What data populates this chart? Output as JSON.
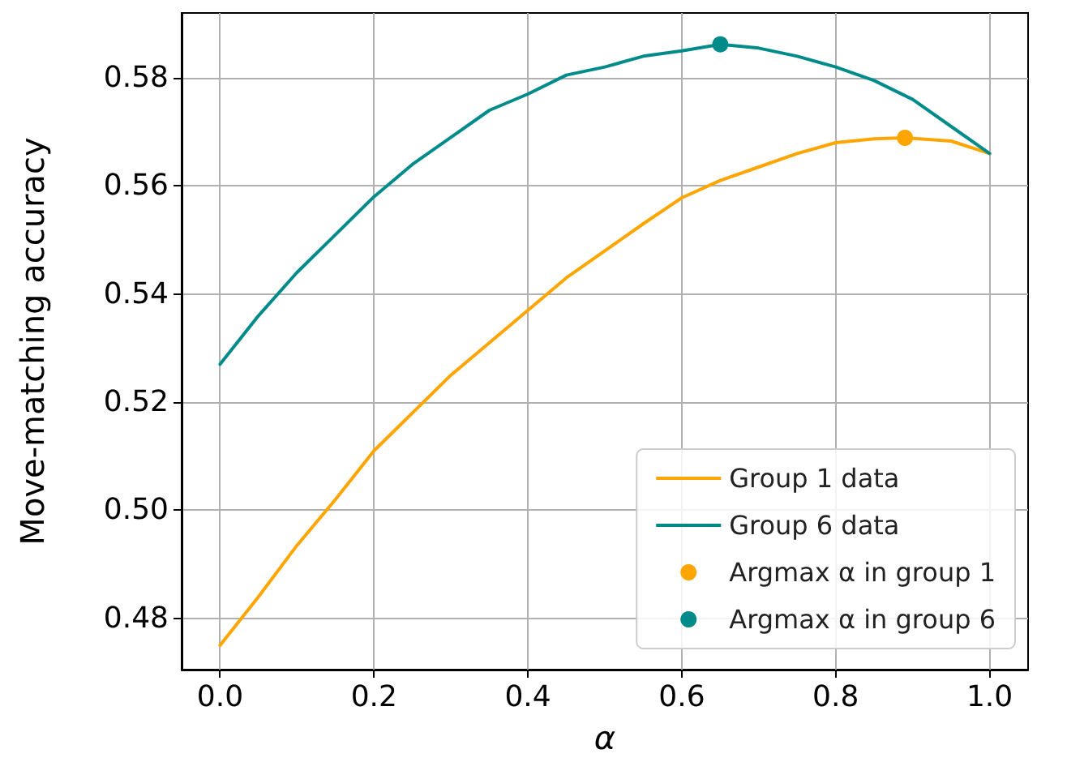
{
  "chart_data": {
    "type": "line",
    "xlabel": "α",
    "ylabel": "Move-matching accuracy",
    "xlim": [
      -0.05,
      1.05
    ],
    "ylim": [
      0.4705,
      0.592
    ],
    "xticks": [
      {
        "value": 0,
        "label": "0.0"
      },
      {
        "value": 0.2,
        "label": "0.2"
      },
      {
        "value": 0.4,
        "label": "0.4"
      },
      {
        "value": 0.6,
        "label": "0.6"
      },
      {
        "value": 0.8,
        "label": "0.8"
      },
      {
        "value": 1,
        "label": "1.0"
      }
    ],
    "yticks": [
      {
        "value": 0.48,
        "label": "0.48"
      },
      {
        "value": 0.5,
        "label": "0.50"
      },
      {
        "value": 0.52,
        "label": "0.52"
      },
      {
        "value": 0.54,
        "label": "0.54"
      },
      {
        "value": 0.56,
        "label": "0.56"
      },
      {
        "value": 0.58,
        "label": "0.58"
      }
    ],
    "grid": true,
    "legend": "bottom right",
    "series": [
      {
        "name": "Group 1 data",
        "color": "#ffa500",
        "marker": "none",
        "x": [
          0,
          0.05,
          0.1,
          0.15,
          0.2,
          0.25,
          0.3,
          0.35,
          0.4,
          0.45,
          0.5,
          0.55,
          0.6,
          0.65,
          0.7,
          0.75,
          0.8,
          0.85,
          0.89,
          0.95,
          1.0
        ],
        "values": [
          0.475,
          0.484,
          0.4935,
          0.502,
          0.511,
          0.518,
          0.525,
          0.531,
          0.537,
          0.543,
          0.548,
          0.553,
          0.5578,
          0.561,
          0.5635,
          0.566,
          0.568,
          0.5687,
          0.5689,
          0.5683,
          0.566
        ]
      },
      {
        "name": "Group 6 data",
        "color": "#008b8b",
        "marker": "none",
        "x": [
          0,
          0.05,
          0.1,
          0.15,
          0.2,
          0.25,
          0.3,
          0.35,
          0.4,
          0.45,
          0.5,
          0.55,
          0.6,
          0.65,
          0.7,
          0.75,
          0.8,
          0.85,
          0.9,
          0.95,
          1.0
        ],
        "values": [
          0.527,
          0.536,
          0.544,
          0.551,
          0.558,
          0.564,
          0.569,
          0.574,
          0.577,
          0.5805,
          0.582,
          0.584,
          0.585,
          0.5862,
          0.5855,
          0.584,
          0.582,
          0.5795,
          0.576,
          0.571,
          0.566
        ]
      },
      {
        "name": "Argmax α in group 1",
        "type": "scatter",
        "color": "#ffa500",
        "marker": "circle",
        "x": [
          0.89
        ],
        "values": [
          0.5689
        ]
      },
      {
        "name": "Argmax α in group 6",
        "type": "scatter",
        "color": "#008b8b",
        "marker": "circle",
        "x": [
          0.65
        ],
        "values": [
          0.5862
        ]
      }
    ]
  }
}
